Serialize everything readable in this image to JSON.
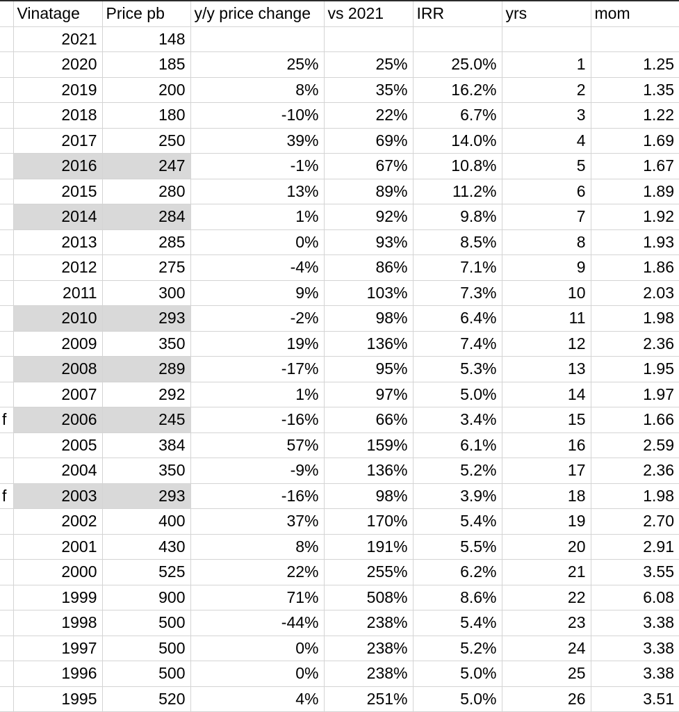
{
  "colors": {
    "highlight_fill": "#d9d9d9",
    "gridline": "#d4d4d4",
    "top_border": "#2b2b2b",
    "text": "#000000",
    "background": "#ffffff"
  },
  "table": {
    "columns": [
      {
        "key": "marker",
        "label": "",
        "width": 19
      },
      {
        "key": "vintage",
        "label": "Vinatage",
        "width": 128
      },
      {
        "key": "price",
        "label": "Price pb",
        "width": 127
      },
      {
        "key": "yoy",
        "label": "y/y price change",
        "width": 192
      },
      {
        "key": "vs2021",
        "label": "vs 2021",
        "width": 128
      },
      {
        "key": "irr",
        "label": "IRR",
        "width": 128
      },
      {
        "key": "yrs",
        "label": "yrs",
        "width": 128
      },
      {
        "key": "mom",
        "label": "mom",
        "width": 127
      }
    ],
    "rows": [
      {
        "marker": "",
        "vintage": "2021",
        "price": "148",
        "yoy": "",
        "vs2021": "",
        "irr": "",
        "yrs": "",
        "mom": "",
        "highlighted": false
      },
      {
        "marker": "",
        "vintage": "2020",
        "price": "185",
        "yoy": "25%",
        "vs2021": "25%",
        "irr": "25.0%",
        "yrs": "1",
        "mom": "1.25",
        "highlighted": false
      },
      {
        "marker": "",
        "vintage": "2019",
        "price": "200",
        "yoy": "8%",
        "vs2021": "35%",
        "irr": "16.2%",
        "yrs": "2",
        "mom": "1.35",
        "highlighted": false
      },
      {
        "marker": "",
        "vintage": "2018",
        "price": "180",
        "yoy": "-10%",
        "vs2021": "22%",
        "irr": "6.7%",
        "yrs": "3",
        "mom": "1.22",
        "highlighted": false
      },
      {
        "marker": "",
        "vintage": "2017",
        "price": "250",
        "yoy": "39%",
        "vs2021": "69%",
        "irr": "14.0%",
        "yrs": "4",
        "mom": "1.69",
        "highlighted": false
      },
      {
        "marker": "",
        "vintage": "2016",
        "price": "247",
        "yoy": "-1%",
        "vs2021": "67%",
        "irr": "10.8%",
        "yrs": "5",
        "mom": "1.67",
        "highlighted": true
      },
      {
        "marker": "",
        "vintage": "2015",
        "price": "280",
        "yoy": "13%",
        "vs2021": "89%",
        "irr": "11.2%",
        "yrs": "6",
        "mom": "1.89",
        "highlighted": false
      },
      {
        "marker": "",
        "vintage": "2014",
        "price": "284",
        "yoy": "1%",
        "vs2021": "92%",
        "irr": "9.8%",
        "yrs": "7",
        "mom": "1.92",
        "highlighted": true
      },
      {
        "marker": "",
        "vintage": "2013",
        "price": "285",
        "yoy": "0%",
        "vs2021": "93%",
        "irr": "8.5%",
        "yrs": "8",
        "mom": "1.93",
        "highlighted": false
      },
      {
        "marker": "",
        "vintage": "2012",
        "price": "275",
        "yoy": "-4%",
        "vs2021": "86%",
        "irr": "7.1%",
        "yrs": "9",
        "mom": "1.86",
        "highlighted": false
      },
      {
        "marker": "",
        "vintage": "2011",
        "price": "300",
        "yoy": "9%",
        "vs2021": "103%",
        "irr": "7.3%",
        "yrs": "10",
        "mom": "2.03",
        "highlighted": false
      },
      {
        "marker": "",
        "vintage": "2010",
        "price": "293",
        "yoy": "-2%",
        "vs2021": "98%",
        "irr": "6.4%",
        "yrs": "11",
        "mom": "1.98",
        "highlighted": true
      },
      {
        "marker": "",
        "vintage": "2009",
        "price": "350",
        "yoy": "19%",
        "vs2021": "136%",
        "irr": "7.4%",
        "yrs": "12",
        "mom": "2.36",
        "highlighted": false
      },
      {
        "marker": "",
        "vintage": "2008",
        "price": "289",
        "yoy": "-17%",
        "vs2021": "95%",
        "irr": "5.3%",
        "yrs": "13",
        "mom": "1.95",
        "highlighted": true
      },
      {
        "marker": "",
        "vintage": "2007",
        "price": "292",
        "yoy": "1%",
        "vs2021": "97%",
        "irr": "5.0%",
        "yrs": "14",
        "mom": "1.97",
        "highlighted": false
      },
      {
        "marker": "f",
        "vintage": "2006",
        "price": "245",
        "yoy": "-16%",
        "vs2021": "66%",
        "irr": "3.4%",
        "yrs": "15",
        "mom": "1.66",
        "highlighted": true
      },
      {
        "marker": "",
        "vintage": "2005",
        "price": "384",
        "yoy": "57%",
        "vs2021": "159%",
        "irr": "6.1%",
        "yrs": "16",
        "mom": "2.59",
        "highlighted": false
      },
      {
        "marker": "",
        "vintage": "2004",
        "price": "350",
        "yoy": "-9%",
        "vs2021": "136%",
        "irr": "5.2%",
        "yrs": "17",
        "mom": "2.36",
        "highlighted": false
      },
      {
        "marker": "f",
        "vintage": "2003",
        "price": "293",
        "yoy": "-16%",
        "vs2021": "98%",
        "irr": "3.9%",
        "yrs": "18",
        "mom": "1.98",
        "highlighted": true
      },
      {
        "marker": "",
        "vintage": "2002",
        "price": "400",
        "yoy": "37%",
        "vs2021": "170%",
        "irr": "5.4%",
        "yrs": "19",
        "mom": "2.70",
        "highlighted": false
      },
      {
        "marker": "",
        "vintage": "2001",
        "price": "430",
        "yoy": "8%",
        "vs2021": "191%",
        "irr": "5.5%",
        "yrs": "20",
        "mom": "2.91",
        "highlighted": false
      },
      {
        "marker": "",
        "vintage": "2000",
        "price": "525",
        "yoy": "22%",
        "vs2021": "255%",
        "irr": "6.2%",
        "yrs": "21",
        "mom": "3.55",
        "highlighted": false
      },
      {
        "marker": "",
        "vintage": "1999",
        "price": "900",
        "yoy": "71%",
        "vs2021": "508%",
        "irr": "8.6%",
        "yrs": "22",
        "mom": "6.08",
        "highlighted": false
      },
      {
        "marker": "",
        "vintage": "1998",
        "price": "500",
        "yoy": "-44%",
        "vs2021": "238%",
        "irr": "5.4%",
        "yrs": "23",
        "mom": "3.38",
        "highlighted": false
      },
      {
        "marker": "",
        "vintage": "1997",
        "price": "500",
        "yoy": "0%",
        "vs2021": "238%",
        "irr": "5.2%",
        "yrs": "24",
        "mom": "3.38",
        "highlighted": false
      },
      {
        "marker": "",
        "vintage": "1996",
        "price": "500",
        "yoy": "0%",
        "vs2021": "238%",
        "irr": "5.0%",
        "yrs": "25",
        "mom": "3.38",
        "highlighted": false
      },
      {
        "marker": "",
        "vintage": "1995",
        "price": "520",
        "yoy": "4%",
        "vs2021": "251%",
        "irr": "5.0%",
        "yrs": "26",
        "mom": "3.51",
        "highlighted": false
      }
    ]
  }
}
